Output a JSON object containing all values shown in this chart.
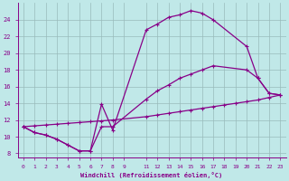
{
  "xlabel": "Windchill (Refroidissement éolien,°C)",
  "bg_color": "#c0e8e8",
  "line_color": "#880088",
  "grid_color": "#99bbbb",
  "xlim": [
    -0.5,
    23.5
  ],
  "ylim": [
    7.5,
    26
  ],
  "xticks": [
    0,
    1,
    2,
    3,
    4,
    5,
    6,
    7,
    8,
    9,
    11,
    12,
    13,
    14,
    15,
    16,
    17,
    18,
    19,
    20,
    21,
    22,
    23
  ],
  "yticks": [
    8,
    10,
    12,
    14,
    16,
    18,
    20,
    22,
    24
  ],
  "curve1_x": [
    0,
    1,
    2,
    3,
    4,
    5,
    6,
    7,
    8,
    11,
    12,
    13,
    14,
    15,
    16,
    17,
    20,
    21,
    22,
    23
  ],
  "curve1_y": [
    11.2,
    10.5,
    10.2,
    9.7,
    9.0,
    8.3,
    8.3,
    13.9,
    10.8,
    22.8,
    23.5,
    24.3,
    24.6,
    25.1,
    24.8,
    24.0,
    20.8,
    17.0,
    15.2,
    15.0
  ],
  "curve2_x": [
    0,
    1,
    2,
    3,
    4,
    5,
    6,
    7,
    8,
    11,
    12,
    13,
    14,
    15,
    16,
    17,
    20,
    21,
    22,
    23
  ],
  "curve2_y": [
    11.2,
    10.5,
    10.2,
    9.7,
    9.0,
    8.3,
    8.3,
    11.2,
    11.2,
    14.5,
    15.5,
    16.2,
    17.0,
    17.5,
    18.0,
    18.5,
    18.0,
    17.0,
    15.2,
    15.0
  ],
  "curve3_x": [
    0,
    1,
    2,
    3,
    4,
    5,
    6,
    7,
    8,
    11,
    12,
    13,
    14,
    15,
    16,
    17,
    18,
    19,
    20,
    21,
    22,
    23
  ],
  "curve3_y": [
    11.2,
    11.3,
    11.4,
    11.5,
    11.6,
    11.7,
    11.8,
    11.9,
    12.0,
    12.4,
    12.6,
    12.8,
    13.0,
    13.2,
    13.4,
    13.6,
    13.8,
    14.0,
    14.2,
    14.4,
    14.7,
    15.0
  ]
}
